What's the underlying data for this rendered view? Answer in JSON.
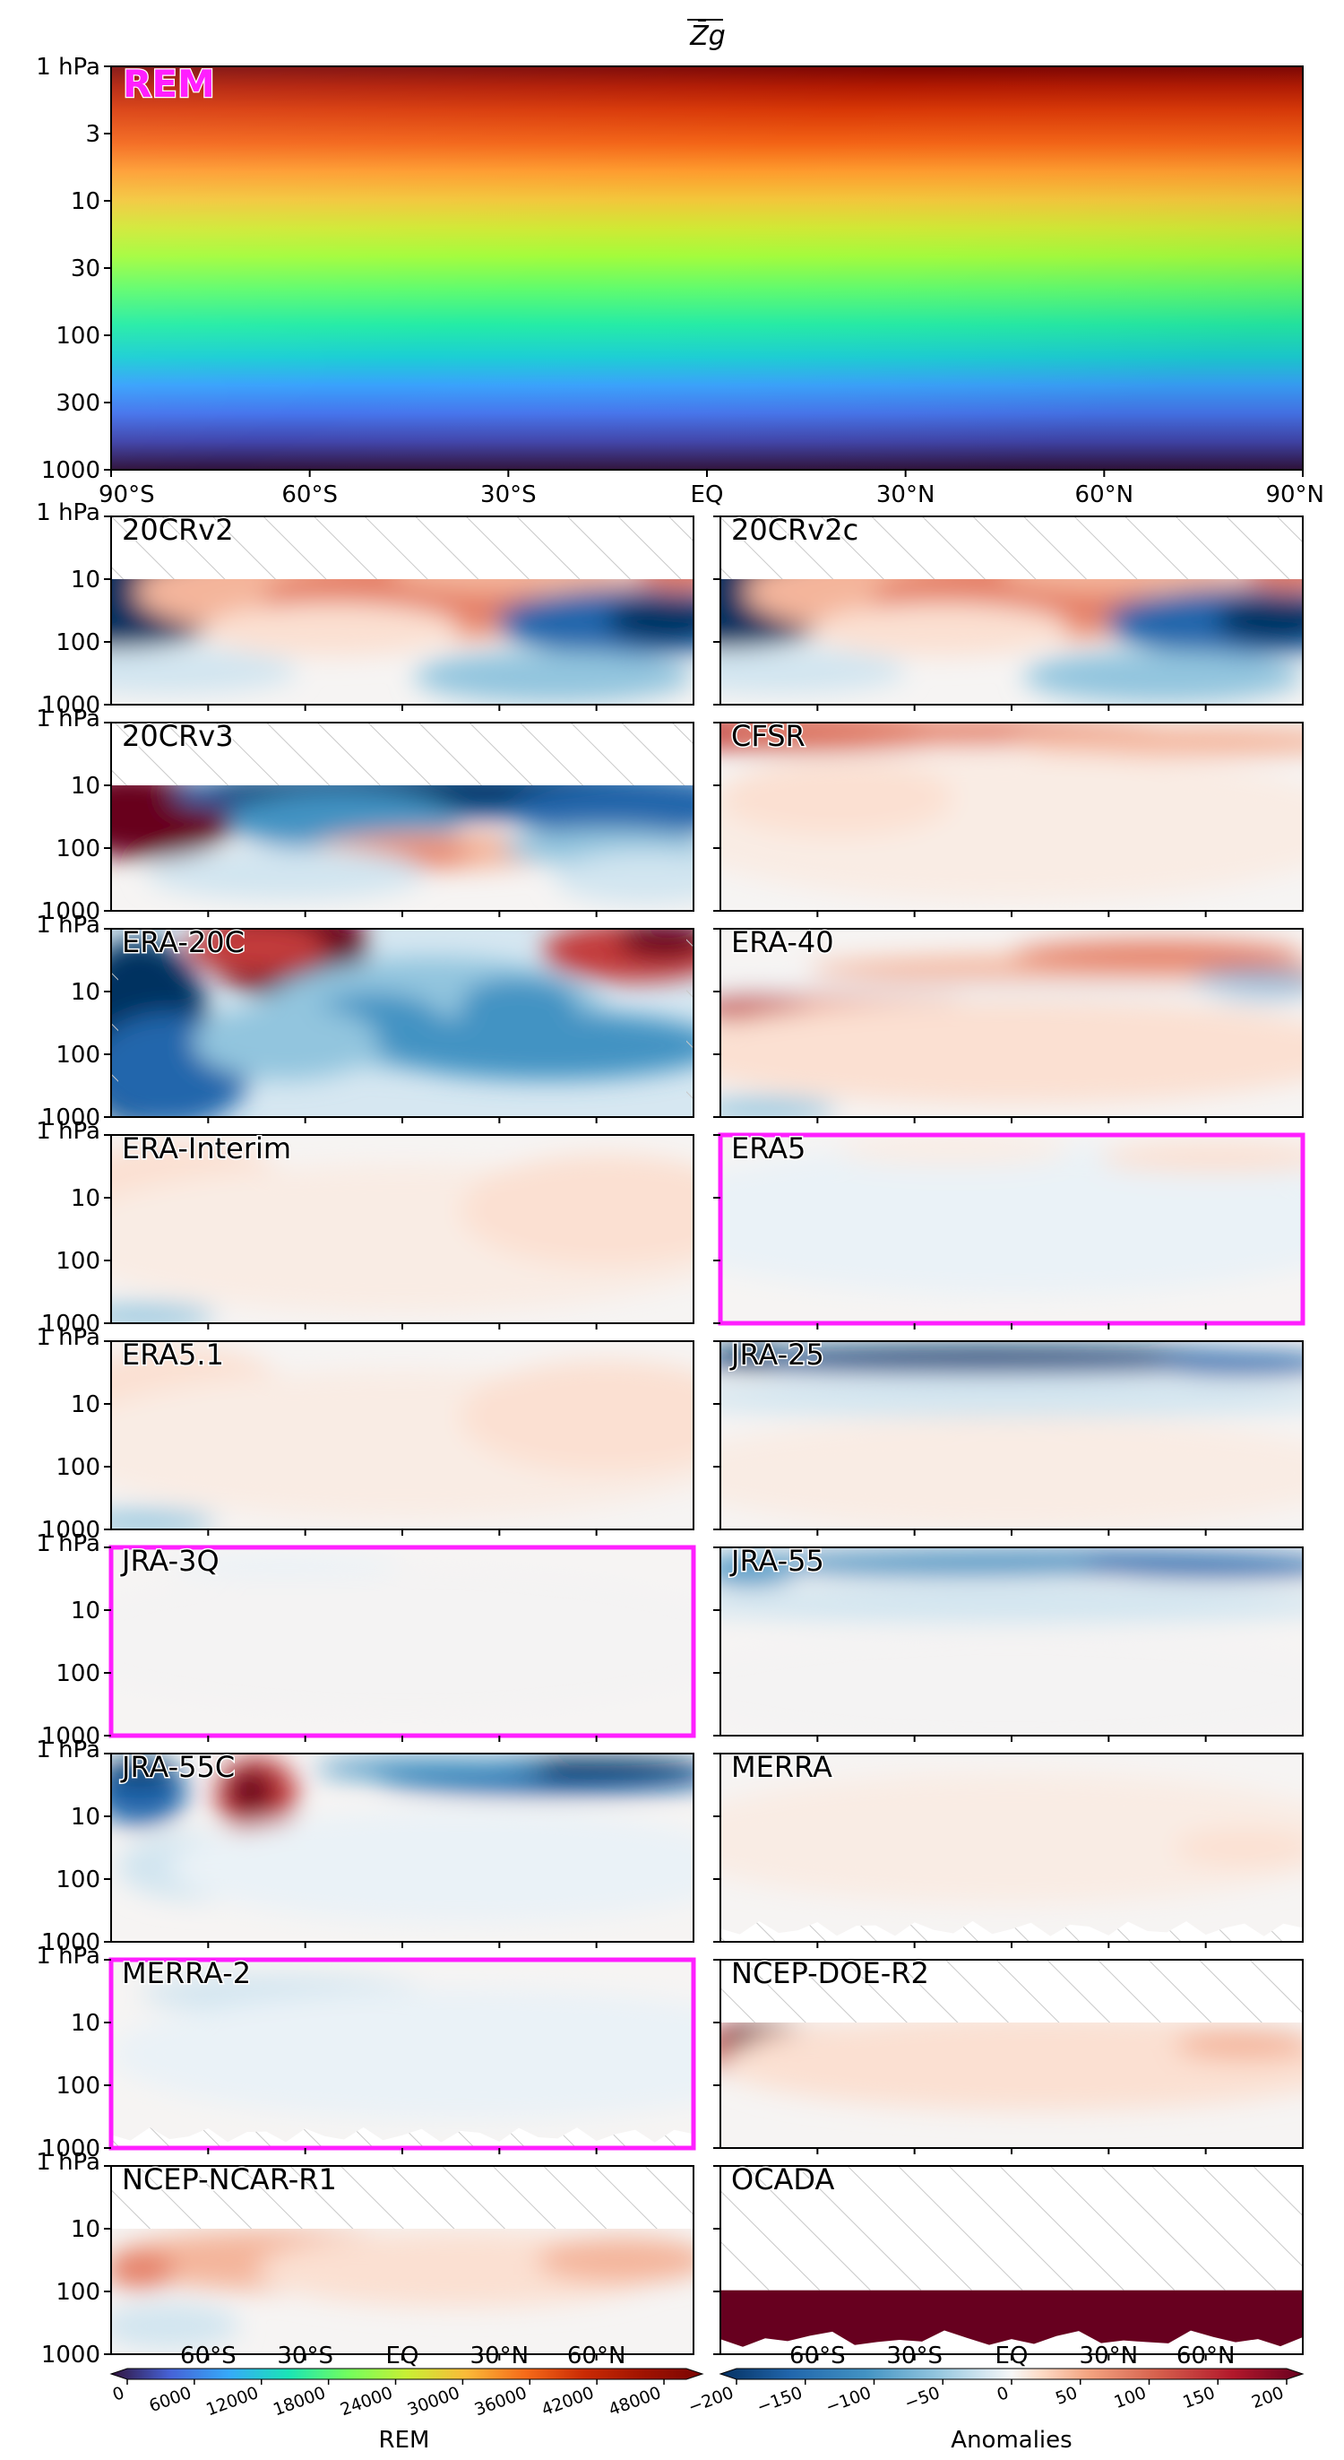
{
  "title": "Z̄g",
  "main": {
    "label": "REM",
    "y_ticks": [
      "1 hPa",
      "3",
      "10",
      "30",
      "100",
      "300",
      "1000"
    ],
    "x_ticks": [
      "90°S",
      "60°S",
      "30°S",
      "EQ",
      "30°N",
      "60°N",
      "90°N"
    ]
  },
  "panel_y_ticks": [
    "1 hPa",
    "10",
    "100",
    "1000"
  ],
  "bottom_lat_ticks": [
    "60°S",
    "30°S",
    "EQ",
    "30°N",
    "60°N"
  ],
  "colorbars": {
    "rem": {
      "label": "REM",
      "ticks": [
        "0",
        "6000",
        "12000",
        "18000",
        "24000",
        "30000",
        "36000",
        "42000",
        "48000"
      ],
      "range": [
        0,
        50000
      ]
    },
    "anom": {
      "label": "Anomalies",
      "ticks": [
        "−200",
        "−150",
        "−100",
        "−50",
        "0",
        "50",
        "100",
        "150",
        "200"
      ],
      "range": [
        -200,
        200
      ]
    }
  },
  "colors": {
    "highlight": "#ff1fff",
    "hatch": "#c8c8c8"
  },
  "chart_data": {
    "type": "heatmap",
    "x_axis": "latitude",
    "y_axis": "pressure (hPa, log scale)",
    "panels": [
      {
        "name": "20CRv2",
        "highlight": false,
        "hatch_top": true,
        "pattern": "20crv2"
      },
      {
        "name": "20CRv2c",
        "highlight": false,
        "hatch_top": true,
        "pattern": "20crv2"
      },
      {
        "name": "20CRv3",
        "highlight": false,
        "hatch_top": true,
        "pattern": "20crv3"
      },
      {
        "name": "CFSR",
        "highlight": false,
        "hatch_top": false,
        "pattern": "cfsr"
      },
      {
        "name": "ERA-20C",
        "highlight": false,
        "hatch_top": false,
        "pattern": "era20c"
      },
      {
        "name": "ERA-40",
        "highlight": false,
        "hatch_top": false,
        "pattern": "era40"
      },
      {
        "name": "ERA-Interim",
        "highlight": false,
        "hatch_top": false,
        "pattern": "weakpos"
      },
      {
        "name": "ERA5",
        "highlight": true,
        "hatch_top": false,
        "pattern": "weakneg"
      },
      {
        "name": "ERA5.1",
        "highlight": false,
        "hatch_top": false,
        "pattern": "weakpos"
      },
      {
        "name": "JRA-25",
        "highlight": false,
        "hatch_top": false,
        "pattern": "topblue"
      },
      {
        "name": "JRA-3Q",
        "highlight": true,
        "hatch_top": false,
        "pattern": "neutral"
      },
      {
        "name": "JRA-55",
        "highlight": false,
        "hatch_top": false,
        "pattern": "topblue2"
      },
      {
        "name": "JRA-55C",
        "highlight": false,
        "hatch_top": false,
        "pattern": "jra55c"
      },
      {
        "name": "MERRA",
        "highlight": false,
        "hatch_top": false,
        "pattern": "merra"
      },
      {
        "name": "MERRA-2",
        "highlight": true,
        "hatch_top": false,
        "pattern": "merra2"
      },
      {
        "name": "NCEP-DOE-R2",
        "highlight": false,
        "hatch_top": true,
        "pattern": "ncep_doe"
      },
      {
        "name": "NCEP-NCAR-R1",
        "highlight": false,
        "hatch_top": true,
        "pattern": "ncep_ncar"
      },
      {
        "name": "OCADA",
        "highlight": false,
        "hatch_top": true,
        "pattern": "ocada"
      }
    ]
  }
}
